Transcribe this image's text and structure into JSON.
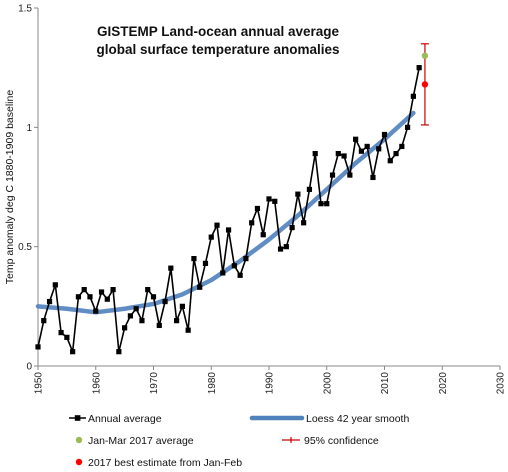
{
  "chart_data": {
    "type": "line",
    "title_line1": "GISTEMP Land-ocean annual average",
    "title_line2": "global surface temperature anomalies",
    "xlabel": "",
    "ylabel": "Temp anomaly deg C 1880-1909 baseline",
    "xlim": [
      1950,
      2030
    ],
    "ylim": [
      0,
      1.5
    ],
    "x_ticks": [
      1950,
      1960,
      1970,
      1980,
      1990,
      2000,
      2010,
      2020,
      2030
    ],
    "y_ticks": [
      0,
      0.5,
      1,
      1.5
    ],
    "y_tick_labels": [
      "0",
      "0.5",
      "1",
      "1.5"
    ],
    "grid": false,
    "legend_position": "bottom",
    "series": [
      {
        "name": "Annual average",
        "color": "#000000",
        "marker": "square",
        "x": [
          1950,
          1951,
          1952,
          1953,
          1954,
          1955,
          1956,
          1957,
          1958,
          1959,
          1960,
          1961,
          1962,
          1963,
          1964,
          1965,
          1966,
          1967,
          1968,
          1969,
          1970,
          1971,
          1972,
          1973,
          1974,
          1975,
          1976,
          1977,
          1978,
          1979,
          1980,
          1981,
          1982,
          1983,
          1984,
          1985,
          1986,
          1987,
          1988,
          1989,
          1990,
          1991,
          1992,
          1993,
          1994,
          1995,
          1996,
          1997,
          1998,
          1999,
          2000,
          2001,
          2002,
          2003,
          2004,
          2005,
          2006,
          2007,
          2008,
          2009,
          2010,
          2011,
          2012,
          2013,
          2014,
          2015,
          2016
        ],
        "y": [
          0.08,
          0.19,
          0.27,
          0.34,
          0.14,
          0.12,
          0.06,
          0.29,
          0.32,
          0.29,
          0.23,
          0.31,
          0.28,
          0.32,
          0.06,
          0.16,
          0.21,
          0.24,
          0.19,
          0.32,
          0.29,
          0.17,
          0.27,
          0.41,
          0.19,
          0.25,
          0.15,
          0.45,
          0.33,
          0.43,
          0.54,
          0.59,
          0.39,
          0.57,
          0.42,
          0.38,
          0.45,
          0.6,
          0.66,
          0.55,
          0.7,
          0.69,
          0.49,
          0.5,
          0.58,
          0.72,
          0.6,
          0.74,
          0.89,
          0.68,
          0.68,
          0.8,
          0.89,
          0.88,
          0.8,
          0.95,
          0.9,
          0.92,
          0.79,
          0.91,
          0.97,
          0.86,
          0.89,
          0.92,
          1.0,
          1.13,
          1.25
        ]
      },
      {
        "name": "Loess 42 year smooth",
        "color": "#4f81bd",
        "x": [
          1950,
          1955,
          1960,
          1965,
          1970,
          1975,
          1980,
          1985,
          1990,
          1995,
          2000,
          2005,
          2010,
          2015
        ],
        "y": [
          0.25,
          0.24,
          0.225,
          0.24,
          0.26,
          0.3,
          0.36,
          0.44,
          0.53,
          0.63,
          0.74,
          0.85,
          0.95,
          1.06
        ]
      },
      {
        "name": "Jan-Mar 2017 average",
        "color": "#9bbb59",
        "marker": "circle",
        "x": [
          2017
        ],
        "y": [
          1.3
        ]
      },
      {
        "name": "2017 best estimate from Jan-Feb",
        "color": "#ff0000",
        "marker": "circle",
        "x": [
          2017
        ],
        "y": [
          1.18
        ]
      },
      {
        "name": "95% confidence",
        "color": "#cc0000",
        "type": "errorbar",
        "x": 2017,
        "low": 1.01,
        "high": 1.35
      }
    ],
    "legend": [
      {
        "label": "Annual average",
        "kind": "line-square",
        "color": "#000000"
      },
      {
        "label": "Loess 42 year smooth",
        "kind": "thick-line",
        "color": "#4f81bd"
      },
      {
        "label": "Jan-Mar 2017 average",
        "kind": "dot",
        "color": "#9bbb59"
      },
      {
        "label": "95% confidence",
        "kind": "errorbar",
        "color": "#cc0000"
      },
      {
        "label": "2017 best estimate from Jan-Feb",
        "kind": "dot",
        "color": "#ff0000"
      }
    ]
  }
}
